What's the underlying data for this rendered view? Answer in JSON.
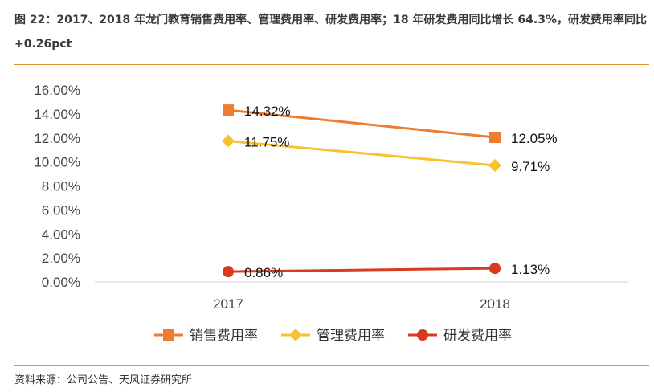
{
  "header": {
    "title": "图 22：2017、2018 年龙门教育销售费用率、管理费用率、研发费用率；18 年研发费用同比增长 64.3%，研发费用率同比+0.26pct"
  },
  "footer": {
    "source": "资料来源：公司公告、天风证券研究所"
  },
  "chart_data": {
    "type": "line",
    "x": [
      "2017",
      "2018"
    ],
    "ylim": [
      0,
      16
    ],
    "yticks": [
      "0.00%",
      "2.00%",
      "4.00%",
      "6.00%",
      "8.00%",
      "10.00%",
      "12.00%",
      "14.00%",
      "16.00%"
    ],
    "grid": false,
    "legend_position": "bottom",
    "series": [
      {
        "name": "销售费用率",
        "values": [
          14.32,
          12.05
        ],
        "labels": [
          "14.32%",
          "12.05%"
        ],
        "color": "#ed7d31",
        "marker": "square"
      },
      {
        "name": "管理费用率",
        "values": [
          11.75,
          9.71
        ],
        "labels": [
          "11.75%",
          "9.71%"
        ],
        "color": "#f7c22f",
        "marker": "diamond"
      },
      {
        "name": "研发费用率",
        "values": [
          0.86,
          1.13
        ],
        "labels": [
          "0.86%",
          "1.13%"
        ],
        "color": "#d83b1f",
        "marker": "circle"
      }
    ]
  }
}
